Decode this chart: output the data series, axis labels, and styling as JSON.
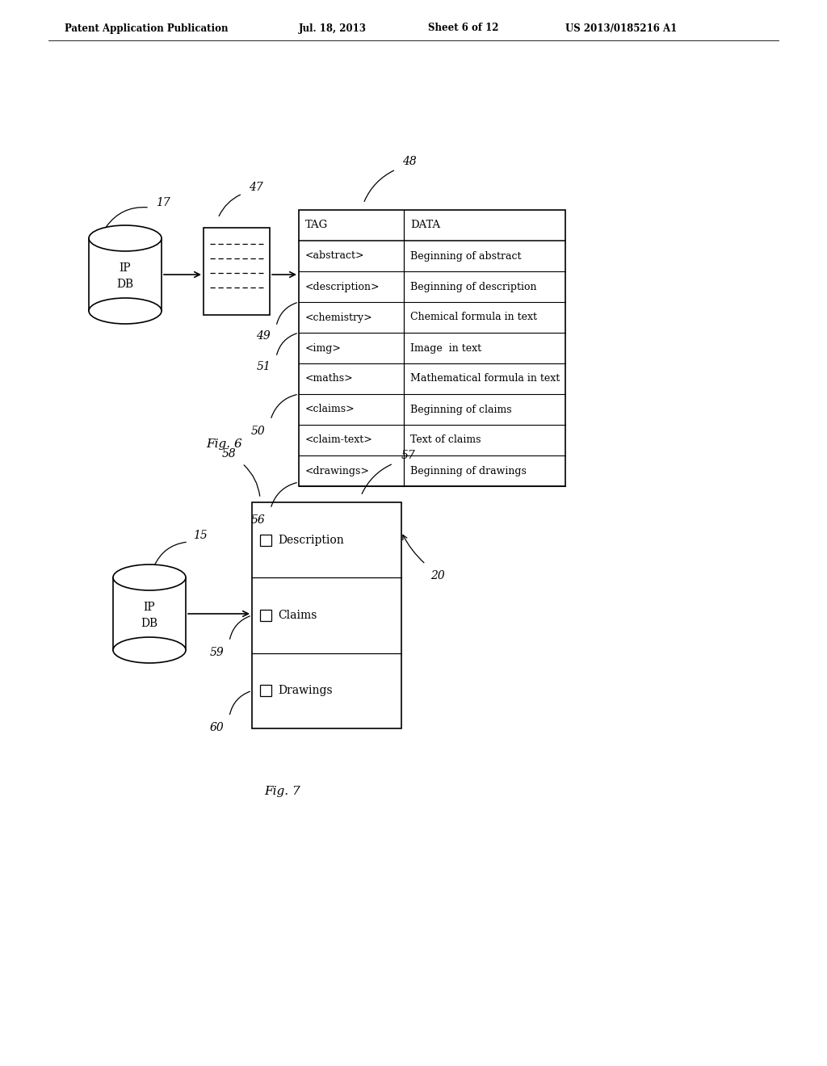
{
  "bg_color": "#ffffff",
  "header_text": "Patent Application Publication",
  "header_date": "Jul. 18, 2013",
  "header_sheet": "Sheet 6 of 12",
  "header_patent": "US 2013/0185216 A1",
  "fig6_label": "Fig. 6",
  "fig7_label": "Fig. 7",
  "db1_label": "IP\nDB",
  "db1_ref": "17",
  "doc1_ref": "47",
  "table_ref": "48",
  "row49_ref": "49",
  "row51_ref": "51",
  "row50_ref": "50",
  "row56_ref": "56",
  "table_headers": [
    "TAG",
    "DATA"
  ],
  "table_rows": [
    [
      "<abstract>",
      "Beginning of abstract"
    ],
    [
      "<description>",
      "Beginning of description"
    ],
    [
      "<chemistry>",
      "Chemical formula in text"
    ],
    [
      "<img>",
      "Image  in text"
    ],
    [
      "<maths>",
      "Mathematical formula in text"
    ],
    [
      "<claims>",
      "Beginning of claims"
    ],
    [
      "<claim-text>",
      "Text of claims"
    ],
    [
      "<drawings>",
      "Beginning of drawings"
    ]
  ],
  "db2_label": "IP\nDB",
  "db2_ref": "15",
  "doc2_ref": "57",
  "tab58_ref": "58",
  "sec20_ref": "20",
  "sec59_ref": "59",
  "sec60_ref": "60",
  "sections": [
    "Description",
    "Claims",
    "Drawings"
  ]
}
